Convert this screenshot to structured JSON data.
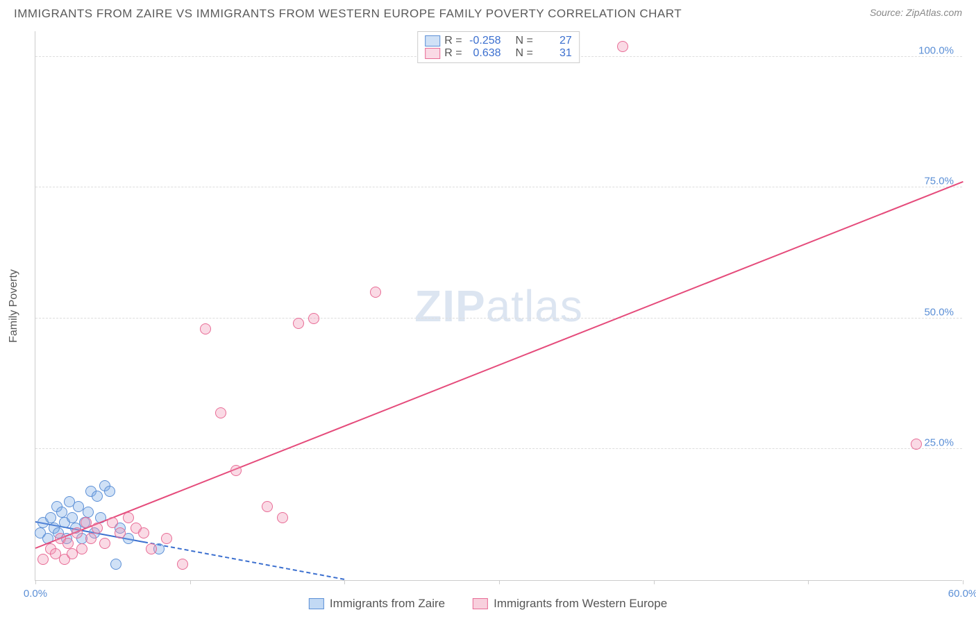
{
  "title": "IMMIGRANTS FROM ZAIRE VS IMMIGRANTS FROM WESTERN EUROPE FAMILY POVERTY CORRELATION CHART",
  "source_label": "Source:",
  "source_name": "ZipAtlas.com",
  "y_axis_title": "Family Poverty",
  "watermark_zip": "ZIP",
  "watermark_atlas": "atlas",
  "chart": {
    "type": "scatter-correlation",
    "background_color": "#ffffff",
    "grid_color": "#dddddd",
    "axis_color": "#cccccc",
    "tick_label_color": "#5b8fd6",
    "xlim": [
      0,
      60
    ],
    "ylim": [
      0,
      105
    ],
    "x_ticks": [
      0,
      10,
      20,
      30,
      40,
      50,
      60
    ],
    "x_tick_labels": {
      "0": "0.0%",
      "60": "60.0%"
    },
    "y_ticks": [
      25,
      50,
      75,
      100
    ],
    "y_tick_labels": {
      "25": "25.0%",
      "50": "50.0%",
      "75": "75.0%",
      "100": "100.0%"
    },
    "point_radius": 8,
    "point_border_width": 1.5,
    "series": [
      {
        "name": "Immigrants from Zaire",
        "fill": "rgba(120,170,230,0.35)",
        "stroke": "#5b8fd6",
        "r_value": "-0.258",
        "n_value": "27",
        "trend": {
          "x1": 0,
          "y1": 11,
          "x2": 20,
          "y2": 0,
          "solid_until_x": 7,
          "color": "#3b6fcf",
          "width": 2
        },
        "points": [
          [
            0.3,
            9
          ],
          [
            0.5,
            11
          ],
          [
            0.8,
            8
          ],
          [
            1.0,
            12
          ],
          [
            1.2,
            10
          ],
          [
            1.4,
            14
          ],
          [
            1.5,
            9
          ],
          [
            1.7,
            13
          ],
          [
            1.9,
            11
          ],
          [
            2.0,
            8
          ],
          [
            2.2,
            15
          ],
          [
            2.4,
            12
          ],
          [
            2.6,
            10
          ],
          [
            2.8,
            14
          ],
          [
            3.0,
            8
          ],
          [
            3.2,
            11
          ],
          [
            3.4,
            13
          ],
          [
            3.6,
            17
          ],
          [
            3.8,
            9
          ],
          [
            4.0,
            16
          ],
          [
            4.2,
            12
          ],
          [
            4.5,
            18
          ],
          [
            4.8,
            17
          ],
          [
            5.2,
            3
          ],
          [
            5.5,
            10
          ],
          [
            6.0,
            8
          ],
          [
            8.0,
            6
          ]
        ]
      },
      {
        "name": "Immigrants from Western Europe",
        "fill": "rgba(240,150,180,0.35)",
        "stroke": "#e86b95",
        "r_value": "0.638",
        "n_value": "31",
        "trend": {
          "x1": 0,
          "y1": 6,
          "x2": 60,
          "y2": 76,
          "solid_until_x": 60,
          "color": "#e54b7b",
          "width": 2
        },
        "points": [
          [
            0.5,
            4
          ],
          [
            1.0,
            6
          ],
          [
            1.3,
            5
          ],
          [
            1.6,
            8
          ],
          [
            1.9,
            4
          ],
          [
            2.1,
            7
          ],
          [
            2.4,
            5
          ],
          [
            2.7,
            9
          ],
          [
            3.0,
            6
          ],
          [
            3.3,
            11
          ],
          [
            3.6,
            8
          ],
          [
            4.0,
            10
          ],
          [
            4.5,
            7
          ],
          [
            5.0,
            11
          ],
          [
            5.5,
            9
          ],
          [
            6.0,
            12
          ],
          [
            6.5,
            10
          ],
          [
            7.0,
            9
          ],
          [
            7.5,
            6
          ],
          [
            8.5,
            8
          ],
          [
            9.5,
            3
          ],
          [
            11,
            48
          ],
          [
            12,
            32
          ],
          [
            13,
            21
          ],
          [
            15,
            14
          ],
          [
            16,
            12
          ],
          [
            17,
            49
          ],
          [
            18,
            50
          ],
          [
            22,
            55
          ],
          [
            38,
            102
          ],
          [
            57,
            26
          ]
        ]
      }
    ]
  },
  "stats_legend": {
    "r_label": "R =",
    "n_label": "N ="
  },
  "bottom_legend": {
    "items": [
      {
        "label": "Immigrants from Zaire",
        "fill": "rgba(120,170,230,0.45)",
        "stroke": "#5b8fd6"
      },
      {
        "label": "Immigrants from Western Europe",
        "fill": "rgba(240,150,180,0.45)",
        "stroke": "#e86b95"
      }
    ]
  }
}
